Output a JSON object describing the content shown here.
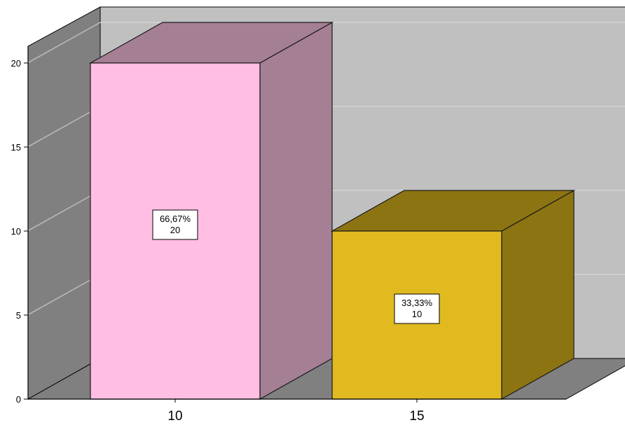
{
  "chart_data": {
    "type": "bar",
    "style": "3d",
    "categories": [
      "10",
      "15"
    ],
    "values": [
      20,
      10
    ],
    "percent_labels": [
      "66,67%",
      "33,33%"
    ],
    "count_labels": [
      "20",
      "10"
    ],
    "ylim": [
      0,
      20
    ],
    "y_ticks": [
      "0",
      "5",
      "10",
      "15",
      "20"
    ],
    "grid": true,
    "legend": "none",
    "colors": {
      "bars": [
        "#FFBEE2",
        "#E1BA20"
      ],
      "bar_sides": [
        "#A57F94",
        "#8C7412"
      ],
      "bar_tops": [
        "#A57F94",
        "#8C7412"
      ],
      "back_wall": "#C0C0C0",
      "side_wall": "#808080",
      "floor": "#808080"
    }
  }
}
